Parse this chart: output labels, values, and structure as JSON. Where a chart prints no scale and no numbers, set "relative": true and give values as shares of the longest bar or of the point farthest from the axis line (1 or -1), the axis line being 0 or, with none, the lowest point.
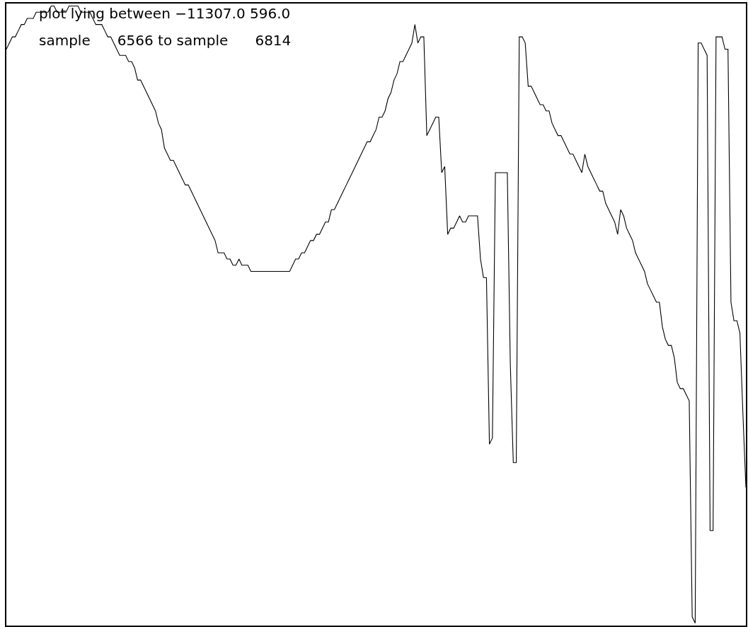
{
  "chart_data": {
    "type": "line",
    "relative": true,
    "marker": "none",
    "line_style": "solid",
    "annotations": [
      "plot lying between −11307.0 596.0",
      "sample      6566 to sample      6814"
    ],
    "categories": [
      null,
      null,
      null,
      null,
      null,
      null,
      null,
      null,
      null,
      null,
      null,
      null,
      null,
      null,
      null,
      null,
      null,
      null,
      null,
      null,
      null,
      null,
      null,
      null,
      null,
      null,
      null,
      null,
      null,
      null,
      null,
      null,
      null,
      null,
      null,
      null,
      null,
      null,
      null,
      null,
      null,
      null,
      null,
      null,
      null,
      null,
      null,
      null,
      null,
      null,
      null,
      null,
      null,
      null,
      null,
      null,
      null,
      null,
      null,
      null,
      null,
      null,
      null,
      null,
      null,
      null,
      null,
      null,
      null,
      null,
      null,
      null,
      null,
      null,
      null,
      null,
      null,
      null,
      null,
      null,
      null,
      null,
      null,
      null,
      null,
      null,
      null,
      null,
      null,
      null,
      null,
      null,
      null,
      null,
      null,
      null,
      null,
      null,
      null,
      null,
      null,
      null,
      null,
      null,
      null,
      null,
      null,
      null,
      null,
      null,
      null,
      null,
      null,
      null,
      null,
      null,
      null,
      null,
      null,
      null,
      null,
      null,
      null,
      null,
      null,
      null,
      null,
      null,
      null,
      null,
      null,
      null,
      null,
      null,
      null,
      null,
      null,
      null,
      null,
      null,
      null,
      null,
      null,
      null,
      null,
      null,
      null,
      null,
      null,
      null,
      null,
      null,
      null,
      null,
      null,
      null,
      null,
      null,
      null,
      null,
      null,
      null,
      null,
      null,
      null,
      null,
      null,
      null,
      null,
      null,
      null,
      null,
      null,
      null,
      null,
      null,
      null,
      null,
      null,
      null,
      null,
      null,
      null,
      null,
      null,
      null,
      null,
      null,
      null,
      null,
      null,
      null,
      null,
      null,
      null,
      null,
      null,
      null,
      null,
      null,
      null,
      null,
      null,
      null,
      null,
      null,
      null,
      null,
      null,
      null,
      null,
      null,
      null,
      null,
      null,
      null,
      null,
      null,
      null,
      null,
      null,
      null,
      null,
      null,
      null,
      null,
      null,
      null,
      null,
      null,
      null,
      null,
      null,
      null,
      null,
      null,
      null,
      null,
      null,
      null,
      null,
      null,
      null,
      null,
      null,
      null,
      null,
      null,
      null
    ],
    "series": [
      {
        "color": "#000000",
        "values": [
          0.93,
          0.94,
          0.95,
          0.95,
          0.96,
          0.97,
          0.97,
          0.98,
          0.98,
          0.98,
          0.99,
          0.99,
          0.99,
          0.99,
          0.99,
          1.0,
          1.0,
          0.99,
          0.99,
          0.99,
          0.99,
          1.0,
          1.0,
          1.0,
          1.0,
          0.99,
          0.99,
          0.99,
          0.99,
          0.98,
          0.97,
          0.97,
          0.97,
          0.96,
          0.95,
          0.95,
          0.94,
          0.93,
          0.92,
          0.92,
          0.92,
          0.91,
          0.91,
          0.9,
          0.88,
          0.88,
          0.87,
          0.86,
          0.85,
          0.84,
          0.83,
          0.81,
          0.8,
          0.77,
          0.76,
          0.75,
          0.75,
          0.74,
          0.73,
          0.72,
          0.71,
          0.71,
          0.7,
          0.69,
          0.68,
          0.67,
          0.66,
          0.65,
          0.64,
          0.63,
          0.62,
          0.6,
          0.6,
          0.6,
          0.59,
          0.59,
          0.58,
          0.58,
          0.59,
          0.58,
          0.58,
          0.58,
          0.57,
          0.57,
          0.57,
          0.57,
          0.57,
          0.57,
          0.57,
          0.57,
          0.57,
          0.57,
          0.57,
          0.57,
          0.57,
          0.57,
          0.58,
          0.59,
          0.59,
          0.6,
          0.6,
          0.61,
          0.62,
          0.62,
          0.63,
          0.63,
          0.64,
          0.65,
          0.65,
          0.67,
          0.67,
          0.68,
          0.69,
          0.7,
          0.71,
          0.72,
          0.73,
          0.74,
          0.75,
          0.76,
          0.77,
          0.78,
          0.78,
          0.79,
          0.8,
          0.82,
          0.82,
          0.83,
          0.85,
          0.86,
          0.88,
          0.89,
          0.91,
          0.91,
          0.92,
          0.93,
          0.94,
          0.97,
          0.94,
          0.95,
          0.95,
          0.79,
          0.8,
          0.81,
          0.82,
          0.82,
          0.73,
          0.74,
          0.63,
          0.64,
          0.64,
          0.65,
          0.66,
          0.65,
          0.65,
          0.66,
          0.66,
          0.66,
          0.66,
          0.59,
          0.56,
          0.56,
          0.29,
          0.3,
          0.73,
          0.73,
          0.73,
          0.73,
          0.73,
          0.42,
          0.26,
          0.26,
          0.95,
          0.95,
          0.94,
          0.87,
          0.87,
          0.86,
          0.85,
          0.84,
          0.84,
          0.83,
          0.83,
          0.81,
          0.8,
          0.79,
          0.79,
          0.78,
          0.77,
          0.76,
          0.76,
          0.75,
          0.74,
          0.73,
          0.76,
          0.74,
          0.73,
          0.72,
          0.71,
          0.7,
          0.7,
          0.68,
          0.67,
          0.66,
          0.65,
          0.63,
          0.67,
          0.66,
          0.64,
          0.63,
          0.62,
          0.6,
          0.59,
          0.58,
          0.57,
          0.55,
          0.54,
          0.53,
          0.52,
          0.52,
          0.48,
          0.46,
          0.45,
          0.45,
          0.43,
          0.39,
          0.38,
          0.38,
          0.37,
          0.36,
          0.01,
          0.0,
          0.94,
          0.94,
          0.93,
          0.92,
          0.15,
          0.15,
          0.95,
          0.95,
          0.95,
          0.93,
          0.93,
          0.52,
          0.49,
          0.49,
          0.47,
          0.34,
          0.22
        ]
      }
    ]
  }
}
